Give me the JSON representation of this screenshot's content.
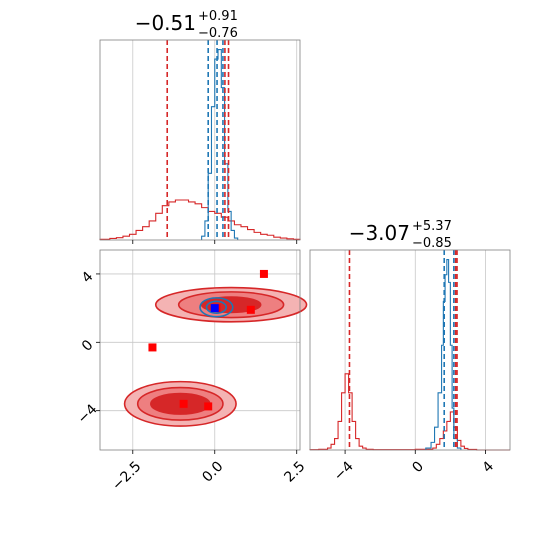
{
  "colors": {
    "red": "#d62728",
    "blue": "#1f77b4",
    "marker": "#ff0000",
    "marker_blue": "#0000ff",
    "grid": "#c8c8c8",
    "frame": "#808080"
  },
  "chart_data": [
    {
      "type": "histogram",
      "panel": "top-left",
      "title": {
        "value": "−0.51",
        "upper": "+0.91",
        "lower": "−0.76"
      },
      "xlim": [
        -3.5,
        2.6
      ],
      "grid": true,
      "series": [
        {
          "color": "#d62728",
          "style": "step",
          "edges": [
            -3.5,
            -3.2,
            -3.0,
            -2.8,
            -2.6,
            -2.4,
            -2.2,
            -2.0,
            -1.8,
            -1.6,
            -1.4,
            -1.2,
            -1.0,
            -0.8,
            -0.6,
            -0.4,
            -0.2,
            0.0,
            0.2,
            0.4,
            0.6,
            0.8,
            1.0,
            1.2,
            1.4,
            1.6,
            1.8,
            2.0,
            2.2,
            2.4,
            2.6
          ],
          "heights": [
            0.004,
            0.008,
            0.012,
            0.02,
            0.03,
            0.05,
            0.07,
            0.1,
            0.14,
            0.18,
            0.2,
            0.21,
            0.21,
            0.2,
            0.19,
            0.17,
            0.15,
            0.14,
            0.12,
            0.1,
            0.08,
            0.07,
            0.055,
            0.04,
            0.03,
            0.025,
            0.015,
            0.01,
            0.006,
            0.004
          ]
        },
        {
          "color": "#1f77b4",
          "style": "step",
          "edges": [
            -0.4,
            -0.3,
            -0.2,
            -0.1,
            0.0,
            0.1,
            0.2,
            0.3,
            0.4,
            0.5,
            0.6,
            0.7
          ],
          "heights": [
            0.02,
            0.1,
            0.35,
            0.7,
            0.95,
            1.0,
            0.8,
            0.4,
            0.15,
            0.05,
            0.01
          ]
        }
      ],
      "vlines": [
        {
          "x": -1.45,
          "color": "#d62728"
        },
        {
          "x": 0.31,
          "color": "#d62728"
        },
        {
          "x": 0.42,
          "color": "#d62728"
        },
        {
          "x": -0.2,
          "color": "#1f77b4"
        },
        {
          "x": 0.07,
          "color": "#1f77b4"
        },
        {
          "x": 0.25,
          "color": "#1f77b4"
        }
      ]
    },
    {
      "type": "scatter",
      "panel": "bottom-left",
      "xlim": [
        -3.5,
        2.6
      ],
      "ylim": [
        -6.3,
        5.4
      ],
      "xticks": [
        -2.5,
        0.0,
        2.5
      ],
      "xtick_labels": [
        "−2.5",
        "0.0",
        "2.5"
      ],
      "yticks": [
        -4,
        0,
        4
      ],
      "ytick_labels": [
        "−4",
        "0",
        "4"
      ],
      "grid": true,
      "contours": [
        {
          "color": "#d62728",
          "center": [
            0.5,
            2.2
          ],
          "levels": [
            {
              "rx": 2.3,
              "ry": 1.0,
              "fill": "#f4b3b3"
            },
            {
              "rx": 1.6,
              "ry": 0.75,
              "fill": "#ee7f80"
            },
            {
              "rx": 0.9,
              "ry": 0.45,
              "fill": "#d62728"
            }
          ]
        },
        {
          "color": "#d62728",
          "center": [
            -1.05,
            -3.6
          ],
          "levels": [
            {
              "rx": 1.7,
              "ry": 1.3,
              "fill": "#f4b3b3"
            },
            {
              "rx": 1.3,
              "ry": 0.95,
              "fill": "#ee7f80"
            },
            {
              "rx": 0.9,
              "ry": 0.6,
              "fill": "#d62728"
            }
          ]
        },
        {
          "color": "#1f77b4",
          "center": [
            0.05,
            2.05
          ],
          "levels": [
            {
              "rx": 0.5,
              "ry": 0.55,
              "fill": "none"
            },
            {
              "rx": 0.3,
              "ry": 0.35,
              "fill": "none"
            }
          ]
        }
      ],
      "markers": [
        {
          "x": 1.5,
          "y": 4.0,
          "color": "#ff0000"
        },
        {
          "x": 1.1,
          "y": 1.9,
          "color": "#ff0000"
        },
        {
          "x": 0.05,
          "y": 2.0,
          "color": "#ff0000"
        },
        {
          "x": 0.0,
          "y": 2.0,
          "color": "#0000ff"
        },
        {
          "x": -1.9,
          "y": -0.3,
          "color": "#ff0000"
        },
        {
          "x": -0.95,
          "y": -3.6,
          "color": "#ff0000"
        },
        {
          "x": -0.2,
          "y": -3.75,
          "color": "#ff0000"
        }
      ]
    },
    {
      "type": "histogram",
      "panel": "bottom-right",
      "title": {
        "value": "−3.07",
        "upper": "+5.37",
        "lower": "−0.85"
      },
      "xlim": [
        -6.0,
        5.4
      ],
      "xticks": [
        -4,
        0,
        4
      ],
      "xtick_labels": [
        "−4",
        "0",
        "4"
      ],
      "grid": true,
      "series": [
        {
          "color": "#d62728",
          "style": "step",
          "edges": [
            -6.0,
            -5.5,
            -5.0,
            -4.8,
            -4.6,
            -4.4,
            -4.2,
            -4.0,
            -3.8,
            -3.6,
            -3.4,
            -3.2,
            -3.0,
            -2.8,
            -2.4,
            -2.0,
            -1.0,
            0.0,
            1.0,
            1.2,
            1.4,
            1.6,
            1.8,
            2.0,
            2.2,
            2.4,
            2.6,
            2.8,
            3.0,
            3.5,
            5.4
          ],
          "heights": [
            0.002,
            0.004,
            0.01,
            0.03,
            0.06,
            0.15,
            0.3,
            0.4,
            0.3,
            0.15,
            0.06,
            0.02,
            0.01,
            0.004,
            0.002,
            0.002,
            0.002,
            0.004,
            0.01,
            0.03,
            0.06,
            0.1,
            0.15,
            0.2,
            0.12,
            0.05,
            0.02,
            0.008,
            0.003,
            0.0
          ]
        },
        {
          "color": "#1f77b4",
          "style": "step",
          "edges": [
            0.6,
            0.9,
            1.1,
            1.3,
            1.5,
            1.6,
            1.7,
            1.8,
            1.9,
            2.0,
            2.1,
            2.2,
            2.4,
            2.6
          ],
          "heights": [
            0.01,
            0.04,
            0.12,
            0.3,
            0.55,
            0.78,
            0.92,
            1.0,
            0.88,
            0.55,
            0.22,
            0.06,
            0.01
          ]
        }
      ],
      "vlines": [
        {
          "x": -3.75,
          "color": "#d62728"
        },
        {
          "x": 2.3,
          "color": "#d62728"
        },
        {
          "x": 2.38,
          "color": "#d62728"
        },
        {
          "x": 1.65,
          "color": "#1f77b4"
        },
        {
          "x": 2.2,
          "color": "#1f77b4"
        }
      ]
    }
  ]
}
